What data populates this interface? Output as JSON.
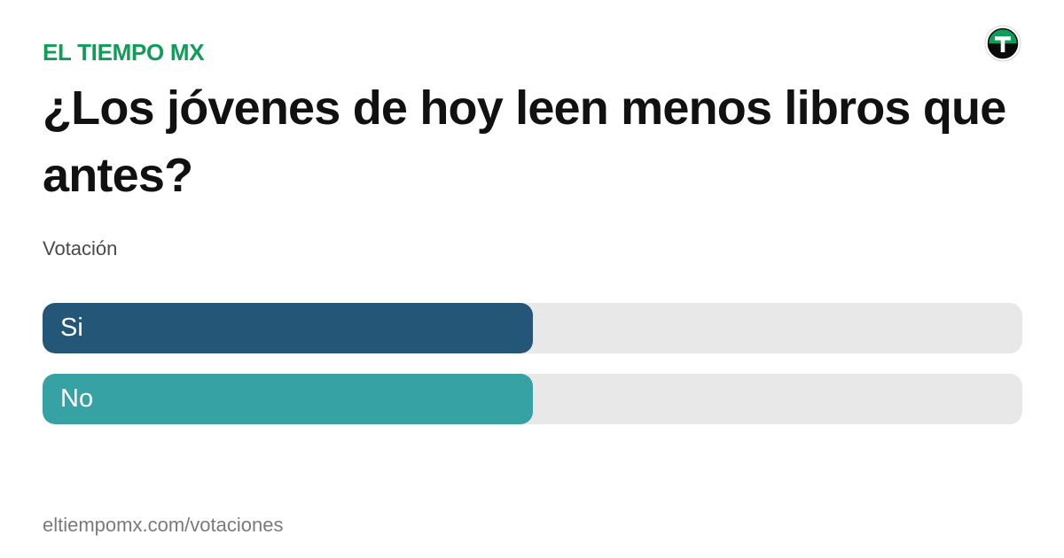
{
  "header": {
    "brand": "EL TIEMPO MX"
  },
  "poll": {
    "question": "¿Los jóvenes de hoy leen menos libros que antes?",
    "subtitle": "Votación",
    "options": [
      {
        "label": "Si",
        "fraction": 0.5,
        "color": "#235677"
      },
      {
        "label": "No",
        "fraction": 0.5,
        "color": "#36a2a3"
      }
    ]
  },
  "footer": {
    "url": "eltiempomx.com/votaciones"
  },
  "icons": {
    "logo": "el-tiempo-logo-icon"
  },
  "colors": {
    "brand": "#0f9d58",
    "track": "#e8e8e8"
  }
}
